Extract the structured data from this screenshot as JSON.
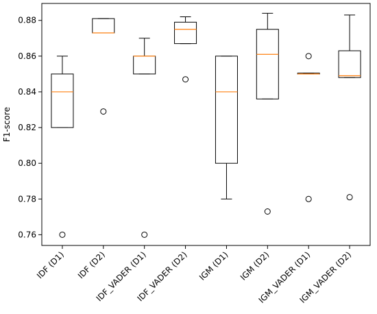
{
  "chart_data": {
    "type": "boxplot",
    "title": "",
    "xlabel": "",
    "ylabel": "F1-score",
    "ylim": [
      0.754,
      0.8895
    ],
    "yticks": [
      0.76,
      0.78,
      0.8,
      0.82,
      0.84,
      0.86,
      0.88
    ],
    "ytick_labels": [
      "0.76",
      "0.78",
      "0.80",
      "0.82",
      "0.84",
      "0.86",
      "0.88"
    ],
    "grid": false,
    "legend": "none",
    "colors": {
      "box": "#000000",
      "median": "#ff7f0e",
      "flier": "#000000"
    },
    "categories": [
      "IDF (D1)",
      "IDF (D2)",
      "IDF_VADER (D1)",
      "IDF_VADER (D2)",
      "IGM (D1)",
      "IGM (D2)",
      "IGM_VADER (D1)",
      "IGM_VADER (D2)"
    ],
    "boxes": [
      {
        "whislo": 0.82,
        "q1": 0.82,
        "med": 0.84,
        "q3": 0.85,
        "whishi": 0.86,
        "fliers": [
          0.76
        ]
      },
      {
        "whislo": 0.873,
        "q1": 0.873,
        "med": 0.873,
        "q3": 0.881,
        "whishi": 0.881,
        "fliers": [
          0.829
        ]
      },
      {
        "whislo": 0.85,
        "q1": 0.85,
        "med": 0.86,
        "q3": 0.86,
        "whishi": 0.87,
        "fliers": [
          0.76
        ]
      },
      {
        "whislo": 0.867,
        "q1": 0.867,
        "med": 0.875,
        "q3": 0.879,
        "whishi": 0.882,
        "fliers": [
          0.847
        ]
      },
      {
        "whislo": 0.78,
        "q1": 0.8,
        "med": 0.84,
        "q3": 0.86,
        "whishi": 0.86,
        "fliers": []
      },
      {
        "whislo": 0.836,
        "q1": 0.836,
        "med": 0.861,
        "q3": 0.875,
        "whishi": 0.884,
        "fliers": [
          0.773
        ]
      },
      {
        "whislo": 0.85,
        "q1": 0.85,
        "med": 0.85,
        "q3": 0.8505,
        "whishi": 0.8505,
        "fliers": [
          0.86,
          0.78
        ]
      },
      {
        "whislo": 0.848,
        "q1": 0.848,
        "med": 0.849,
        "q3": 0.863,
        "whishi": 0.883,
        "fliers": [
          0.781
        ]
      }
    ]
  }
}
